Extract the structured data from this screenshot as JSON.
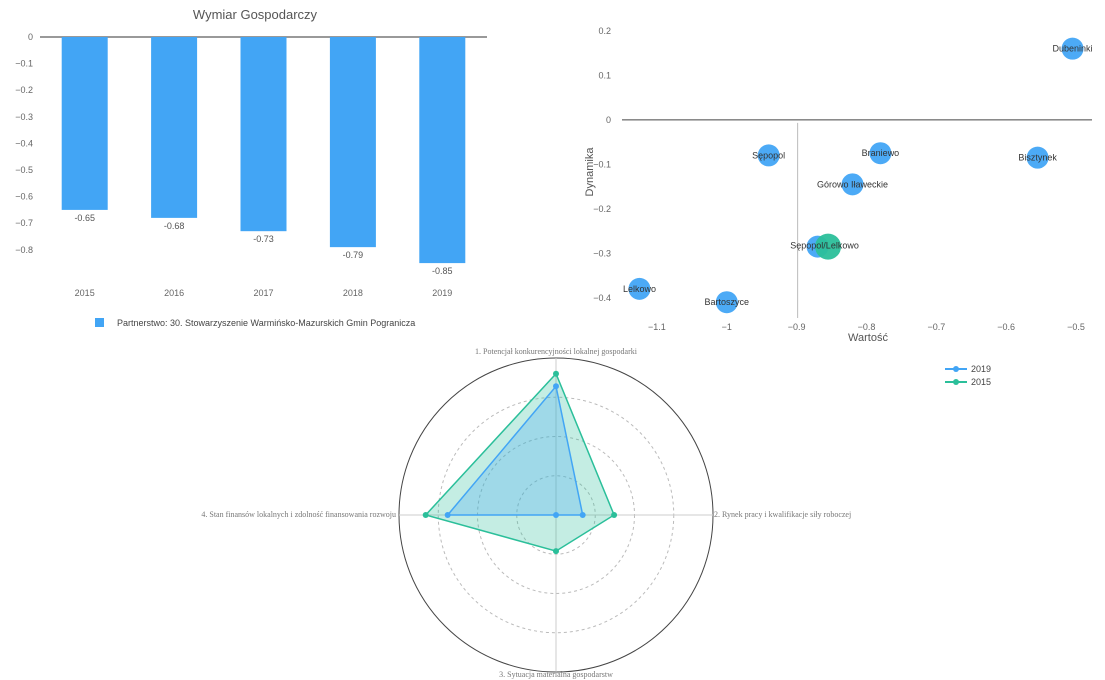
{
  "chart_data": [
    {
      "type": "bar",
      "title": "Wymiar Gospodarczy",
      "categories": [
        "2015",
        "2016",
        "2017",
        "2018",
        "2019"
      ],
      "series": [
        {
          "name": "Partnerstwo: 30. Stowarzyszenie Warmińsko-Mazurskich Gmin Pogranicza",
          "values": [
            -0.65,
            -0.68,
            -0.73,
            -0.79,
            -0.85
          ]
        }
      ],
      "data_labels": [
        "-0.65",
        "-0.68",
        "-0.73",
        "-0.79",
        "-0.85"
      ],
      "ylim": [
        -0.85,
        0
      ],
      "yticks": [
        "0",
        "−0.1",
        "−0.2",
        "−0.3",
        "−0.4",
        "−0.5",
        "−0.6",
        "−0.7",
        "−0.8"
      ],
      "color": "#42a5f5",
      "legend_position": "bottom"
    },
    {
      "type": "scatter",
      "xlabel": "Wartość",
      "ylabel": "Dynamika",
      "xlim": [
        -1.15,
        -0.48
      ],
      "ylim": [
        -0.45,
        0.22
      ],
      "xticks": [
        {
          "v": -1.1,
          "label": "−1.1"
        },
        {
          "v": -1.0,
          "label": "−1"
        },
        {
          "v": -0.9,
          "label": "−0.9"
        },
        {
          "v": -0.8,
          "label": "−0.8"
        },
        {
          "v": -0.7,
          "label": "−0.7"
        },
        {
          "v": -0.6,
          "label": "−0.6"
        },
        {
          "v": -0.5,
          "label": "−0.5"
        }
      ],
      "yticks": [
        {
          "v": 0.2,
          "label": "0.2"
        },
        {
          "v": 0.1,
          "label": "0.1"
        },
        {
          "v": 0,
          "label": "0"
        },
        {
          "v": -0.1,
          "label": "−0.1"
        },
        {
          "v": -0.2,
          "label": "−0.2"
        },
        {
          "v": -0.3,
          "label": "−0.3"
        },
        {
          "v": -0.4,
          "label": "−0.4"
        }
      ],
      "points": [
        {
          "label": "Dubeninki",
          "x": -0.505,
          "y": 0.16,
          "color": "#42a5f5",
          "size": 11
        },
        {
          "label": "Sępopol",
          "x": -0.94,
          "y": -0.08,
          "color": "#42a5f5",
          "size": 11
        },
        {
          "label": "Braniewo",
          "x": -0.78,
          "y": -0.075,
          "color": "#42a5f5",
          "size": 11
        },
        {
          "label": "Bisztynek",
          "x": -0.555,
          "y": -0.085,
          "color": "#42a5f5",
          "size": 11
        },
        {
          "label": "Górowo Iławeckie",
          "x": -0.82,
          "y": -0.145,
          "color": "#42a5f5",
          "size": 11
        },
        {
          "label": "Sępopol 2",
          "x": -0.87,
          "y": -0.285,
          "color": "#42a5f5",
          "size": 11,
          "hidden_label": true
        },
        {
          "label": "Sępopol",
          "x": -0.855,
          "y": -0.285,
          "color": "#2bbf9a",
          "size": 13,
          "hidden_label": true
        },
        {
          "label": "Lelkowo",
          "x": -1.125,
          "y": -0.38,
          "color": "#42a5f5",
          "size": 11
        },
        {
          "label": "Bartoszyce",
          "x": -1.0,
          "y": -0.41,
          "color": "#42a5f5",
          "size": 11
        }
      ],
      "printed_labels": [
        {
          "text": "Dubeninki",
          "x": -0.505,
          "y": 0.16
        },
        {
          "text": "Sępopol",
          "x": -0.94,
          "y": -0.08
        },
        {
          "text": "Braniewo",
          "x": -0.78,
          "y": -0.075
        },
        {
          "text": "Bisztynek",
          "x": -0.555,
          "y": -0.085
        },
        {
          "text": "Górowo Iławeckie",
          "x": -0.82,
          "y": -0.145
        },
        {
          "text": "Sępopol/Lelkowo",
          "x": -0.86,
          "y": -0.283
        },
        {
          "text": "Lelkowo",
          "x": -1.125,
          "y": -0.38
        },
        {
          "text": "Bartoszyce",
          "x": -1.0,
          "y": -0.41
        }
      ]
    },
    {
      "type": "radar",
      "axes": [
        "1. Potencjał konkurencyjności lokalnej gospodarki",
        "2. Rynek pracy i kwalifikacje siły roboczej",
        "3. Sytuacja materialna gospodarstw",
        "4. Stan finansów lokalnych i zdolność finansowania rozwoju"
      ],
      "rmax": 1,
      "rings": [
        0.25,
        0.5,
        0.75,
        1
      ],
      "series": [
        {
          "name": "2019",
          "values": [
            0.82,
            0.17,
            0.0,
            0.69
          ],
          "color": "#42a5f5"
        },
        {
          "name": "2015",
          "values": [
            0.9,
            0.37,
            0.23,
            0.83
          ],
          "color": "#2bbf9a"
        }
      ],
      "legend_position": "right"
    }
  ]
}
